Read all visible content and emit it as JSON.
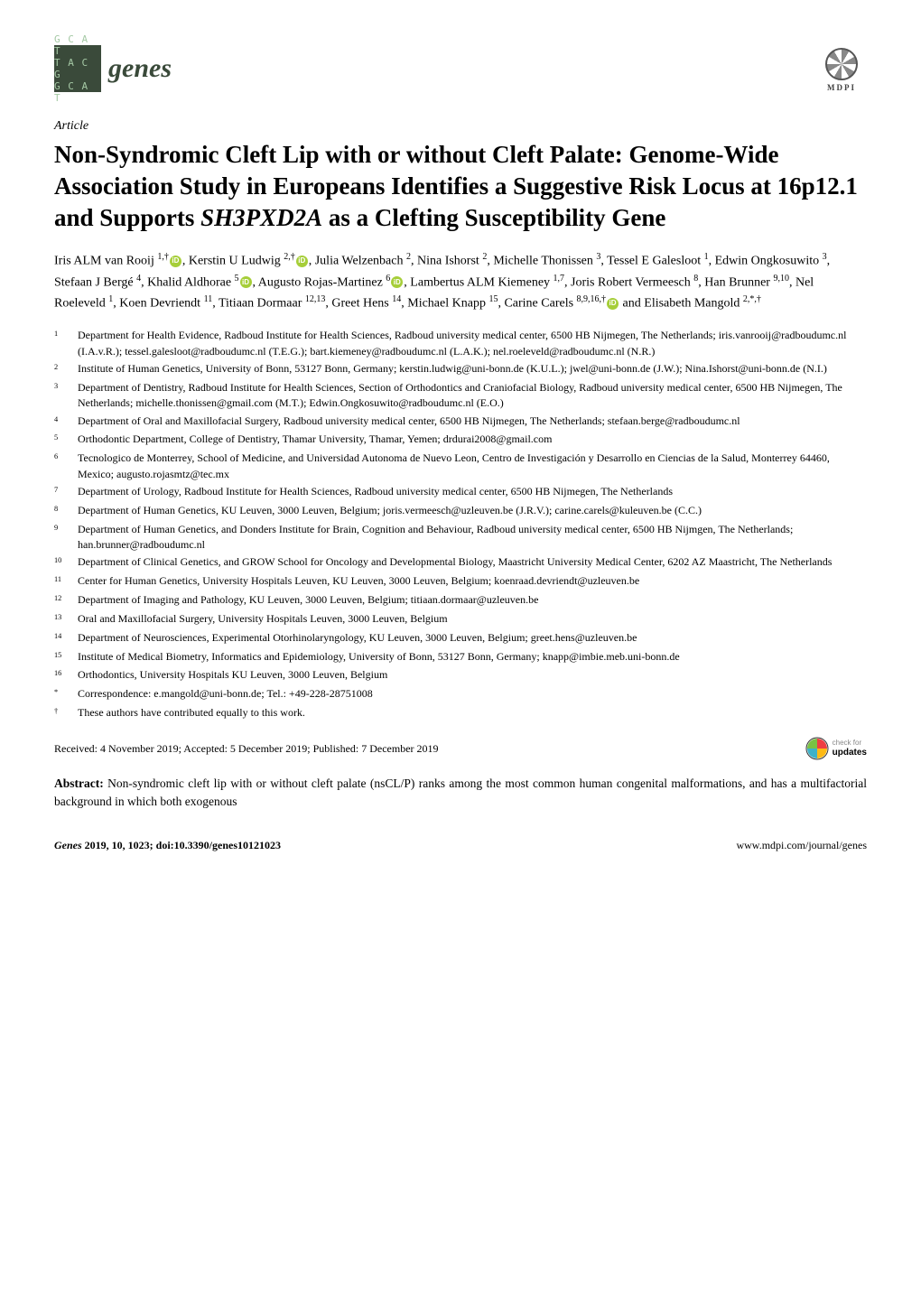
{
  "journal": {
    "logo_lines": [
      "G C A T",
      "T A C G",
      "G C A T"
    ],
    "name": "genes",
    "publisher": "MDPI"
  },
  "article_type": "Article",
  "title_parts": {
    "pre": "Non-Syndromic Cleft Lip with or without Cleft Palate: Genome-Wide Association Study in Europeans Identifies a Suggestive Risk Locus at 16p12.1 and Supports ",
    "gene": "SH3PXD2A",
    "post": " as a Clefting Susceptibility Gene"
  },
  "authors_html": "Iris ALM van Rooij <sup>1,†</sup><span class='orcid' data-name='orcid-icon' data-interactable='false'></span>, Kerstin U Ludwig <sup>2,†</sup><span class='orcid' data-name='orcid-icon' data-interactable='false'></span>, Julia Welzenbach <sup>2</sup>, Nina Ishorst <sup>2</sup>, Michelle Thonissen <sup>3</sup>, Tessel E Galesloot <sup>1</sup>, Edwin Ongkosuwito <sup>3</sup>, Stefaan J Bergé <sup>4</sup>, Khalid Aldhorae <sup>5</sup><span class='orcid' data-name='orcid-icon' data-interactable='false'></span>, Augusto Rojas-Martinez <sup>6</sup><span class='orcid' data-name='orcid-icon' data-interactable='false'></span>, Lambertus ALM Kiemeney <sup>1,7</sup>, Joris Robert Vermeesch <sup>8</sup>, Han Brunner <sup>9,10</sup>, Nel Roeleveld <sup>1</sup>, Koen Devriendt <sup>11</sup>, Titiaan Dormaar <sup>12,13</sup>, Greet Hens <sup>14</sup>, Michael Knapp <sup>15</sup>, Carine Carels <sup>8,9,16,†</sup><span class='orcid' data-name='orcid-icon' data-interactable='false'></span> and Elisabeth Mangold <sup>2,*,†</sup>",
  "affiliations": [
    {
      "n": "1",
      "t": "Department for Health Evidence, Radboud Institute for Health Sciences, Radboud university medical center, 6500 HB Nijmegen, The Netherlands; iris.vanrooij@radboudumc.nl (I.A.v.R.); tessel.galesloot@radboudumc.nl (T.E.G.); bart.kiemeney@radboudumc.nl (L.A.K.); nel.roeleveld@radboudumc.nl (N.R.)"
    },
    {
      "n": "2",
      "t": "Institute of Human Genetics, University of Bonn, 53127 Bonn, Germany; kerstin.ludwig@uni-bonn.de (K.U.L.); jwel@uni-bonn.de (J.W.); Nina.Ishorst@uni-bonn.de (N.I.)"
    },
    {
      "n": "3",
      "t": "Department of Dentistry, Radboud Institute for Health Sciences, Section of Orthodontics and Craniofacial Biology, Radboud university medical center, 6500 HB Nijmegen, The Netherlands; michelle.thonissen@gmail.com (M.T.); Edwin.Ongkosuwito@radboudumc.nl (E.O.)"
    },
    {
      "n": "4",
      "t": "Department of Oral and Maxillofacial Surgery, Radboud university medical center, 6500 HB Nijmegen, The Netherlands; stefaan.berge@radboudumc.nl"
    },
    {
      "n": "5",
      "t": "Orthodontic Department, College of Dentistry, Thamar University, Thamar, Yemen; drdurai2008@gmail.com"
    },
    {
      "n": "6",
      "t": "Tecnologico de Monterrey, School of Medicine, and Universidad Autonoma de Nuevo Leon, Centro de Investigación y Desarrollo en Ciencias de la Salud, Monterrey 64460, Mexico; augusto.rojasmtz@tec.mx"
    },
    {
      "n": "7",
      "t": "Department of Urology, Radboud Institute for Health Sciences, Radboud university medical center, 6500 HB Nijmegen, The Netherlands"
    },
    {
      "n": "8",
      "t": "Department of Human Genetics, KU Leuven, 3000 Leuven, Belgium; joris.vermeesch@uzleuven.be (J.R.V.); carine.carels@kuleuven.be (C.C.)"
    },
    {
      "n": "9",
      "t": "Department of Human Genetics, and Donders Institute for Brain, Cognition and Behaviour, Radboud university medical center, 6500 HB Nijmgen, The Netherlands; han.brunner@radboudumc.nl"
    },
    {
      "n": "10",
      "t": "Department of Clinical Genetics, and GROW School for Oncology and Developmental Biology, Maastricht University Medical Center, 6202 AZ Maastricht, The Netherlands"
    },
    {
      "n": "11",
      "t": "Center for Human Genetics, University Hospitals Leuven, KU Leuven, 3000 Leuven, Belgium; koenraad.devriendt@uzleuven.be"
    },
    {
      "n": "12",
      "t": "Department of Imaging and Pathology, KU Leuven, 3000 Leuven, Belgium; titiaan.dormaar@uzleuven.be"
    },
    {
      "n": "13",
      "t": "Oral and Maxillofacial Surgery, University Hospitals Leuven, 3000 Leuven, Belgium"
    },
    {
      "n": "14",
      "t": "Department of Neurosciences, Experimental Otorhinolaryngology, KU Leuven, 3000 Leuven, Belgium; greet.hens@uzleuven.be"
    },
    {
      "n": "15",
      "t": "Institute of Medical Biometry, Informatics and Epidemiology, University of Bonn, 53127 Bonn, Germany; knapp@imbie.meb.uni-bonn.de"
    },
    {
      "n": "16",
      "t": "Orthodontics, University Hospitals KU Leuven, 3000 Leuven, Belgium"
    },
    {
      "n": "*",
      "t": "Correspondence: e.mangold@uni-bonn.de; Tel.: +49-228-28751008"
    },
    {
      "n": "†",
      "t": "These authors have contributed equally to this work."
    }
  ],
  "received": "Received: 4 November 2019; Accepted: 5 December 2019; Published: 7 December 2019",
  "checkfor": {
    "l1": "check for",
    "l2": "updates"
  },
  "abstract": {
    "label": "Abstract:",
    "text": " Non-syndromic cleft lip with or without cleft palate (nsCL/P) ranks among the most common human congenital malformations, and has a multifactorial background in which both exogenous"
  },
  "footer": {
    "left_italic": "Genes",
    "left_rest": " 2019, 10, 1023; doi:10.3390/genes10121023",
    "right": "www.mdpi.com/journal/genes"
  },
  "colors": {
    "logo_bg": "#3a4a3a",
    "logo_fg": "#a5c9a5",
    "orcid": "#a6ce39",
    "text": "#000000",
    "bg": "#ffffff"
  }
}
